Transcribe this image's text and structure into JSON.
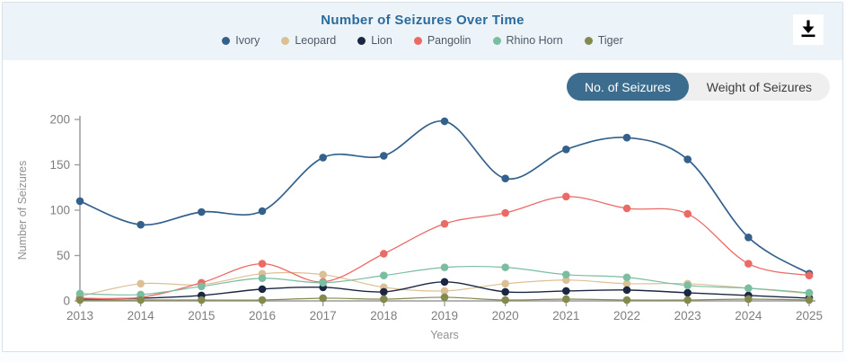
{
  "header": {
    "title": "Number of Seizures Over Time",
    "download_icon": "download-icon"
  },
  "legend": {
    "items": [
      {
        "label": "Ivory",
        "color": "#33618c"
      },
      {
        "label": "Leopard",
        "color": "#dcc095"
      },
      {
        "label": "Lion",
        "color": "#1b2742"
      },
      {
        "label": "Pangolin",
        "color": "#ec6a66"
      },
      {
        "label": "Rhino Horn",
        "color": "#7abda0"
      },
      {
        "label": "Tiger",
        "color": "#84894e"
      }
    ]
  },
  "toggle": {
    "options": [
      {
        "label": "No. of Seizures",
        "active": true
      },
      {
        "label": "Weight of Seizures",
        "active": false
      }
    ],
    "active_bg": "#3d6d8e",
    "inactive_bg": "#efefef"
  },
  "chart_data": {
    "type": "line",
    "title": "Number of Seizures Over Time",
    "x": [
      "2013",
      "2014",
      "2015",
      "2016",
      "2017",
      "2018",
      "2019",
      "2020",
      "2021",
      "2022",
      "2023",
      "2024",
      "2025"
    ],
    "series": [
      {
        "name": "Ivory",
        "color": "#33618c",
        "line_width": 1.7,
        "values": [
          110,
          84,
          98,
          99,
          158,
          160,
          198,
          135,
          167,
          180,
          156,
          70,
          30
        ]
      },
      {
        "name": "Leopard",
        "color": "#dcc095",
        "line_width": 1.2,
        "values": [
          5,
          19,
          18,
          30,
          29,
          15,
          11,
          19,
          23,
          19,
          19,
          14,
          8
        ]
      },
      {
        "name": "Lion",
        "color": "#1b2742",
        "line_width": 1.4,
        "values": [
          2,
          3,
          6,
          13,
          15,
          10,
          21,
          10,
          11,
          12,
          9,
          6,
          3
        ]
      },
      {
        "name": "Pangolin",
        "color": "#ec6a66",
        "line_width": 1.3,
        "values": [
          3,
          4,
          20,
          41,
          21,
          52,
          85,
          97,
          115,
          102,
          96,
          41,
          28
        ]
      },
      {
        "name": "Rhino Horn",
        "color": "#7abda0",
        "line_width": 1.2,
        "values": [
          8,
          7,
          16,
          25,
          20,
          28,
          37,
          37,
          29,
          26,
          17,
          14,
          9
        ]
      },
      {
        "name": "Tiger",
        "color": "#84894e",
        "line_width": 1.2,
        "values": [
          1,
          1,
          1,
          1,
          3,
          2,
          4,
          1,
          2,
          1,
          1,
          2,
          1
        ]
      }
    ],
    "xlabel": "Years",
    "ylabel": "Number of Seizures",
    "ylim": [
      0,
      200
    ],
    "yticks": [
      0,
      50,
      100,
      150,
      200
    ],
    "grid": false,
    "smooth": true,
    "legend_position": "top",
    "axis_color": "#9b9b9b",
    "tick_label_color": "#7e7e7e",
    "axis_title_color": "#8f9396"
  }
}
